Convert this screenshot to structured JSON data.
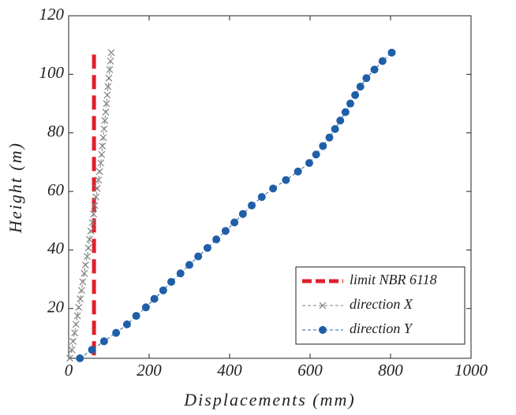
{
  "chart_data": {
    "type": "line",
    "xlabel": "Displacements (mm)",
    "ylabel": "Height (m)",
    "xlim": [
      0,
      1000
    ],
    "ylim": [
      3,
      120
    ],
    "xticks": [
      0,
      200,
      400,
      600,
      800,
      1000
    ],
    "yticks": [
      20,
      40,
      60,
      80,
      100,
      120
    ],
    "legend": "lower right",
    "series": [
      {
        "name": "limit NBR 6118",
        "color": "#e0202a",
        "style": "dashed",
        "marker": "none",
        "x": [
          63,
          63
        ],
        "values": [
          4,
          108
        ]
      },
      {
        "name": "direction X",
        "color": "#808080",
        "style": "dashed",
        "marker": "x",
        "x": [
          3,
          8,
          11,
          15,
          18,
          22,
          25,
          29,
          32,
          35,
          39,
          42,
          46,
          49,
          52,
          55,
          59,
          62,
          65,
          68,
          71,
          74,
          77,
          80,
          82,
          84,
          86,
          88,
          90,
          92,
          94,
          96,
          98,
          100,
          102,
          104,
          106
        ],
        "values": [
          3,
          5.9,
          8.8,
          11.7,
          14.6,
          17.5,
          20.4,
          23.3,
          26.2,
          29.1,
          32,
          34.9,
          37.8,
          40.7,
          43.6,
          46.5,
          49.4,
          52.3,
          55.2,
          58.1,
          61,
          63.9,
          66.8,
          69.7,
          72.6,
          75.5,
          78.4,
          81.3,
          84.2,
          87.1,
          90,
          92.9,
          95.8,
          98.7,
          101.6,
          104.5,
          107.4
        ]
      },
      {
        "name": "direction Y",
        "color": "#1f5fa8",
        "style": "dashed",
        "marker": "o",
        "x": [
          28,
          58,
          88,
          118,
          145,
          168,
          192,
          213,
          235,
          255,
          278,
          300,
          322,
          345,
          367,
          390,
          412,
          433,
          455,
          480,
          508,
          540,
          570,
          598,
          615,
          632,
          648,
          662,
          675,
          688,
          700,
          712,
          725,
          740,
          760,
          780,
          803
        ],
        "values": [
          3,
          5.9,
          8.8,
          11.7,
          14.6,
          17.5,
          20.4,
          23.3,
          26.2,
          29.1,
          32,
          34.9,
          37.8,
          40.7,
          43.6,
          46.5,
          49.4,
          52.3,
          55.2,
          58.1,
          61,
          63.9,
          66.8,
          69.7,
          72.6,
          75.5,
          78.4,
          81.3,
          84.2,
          87.1,
          90,
          92.9,
          95.8,
          98.7,
          101.6,
          104.5,
          107.4
        ]
      }
    ]
  }
}
